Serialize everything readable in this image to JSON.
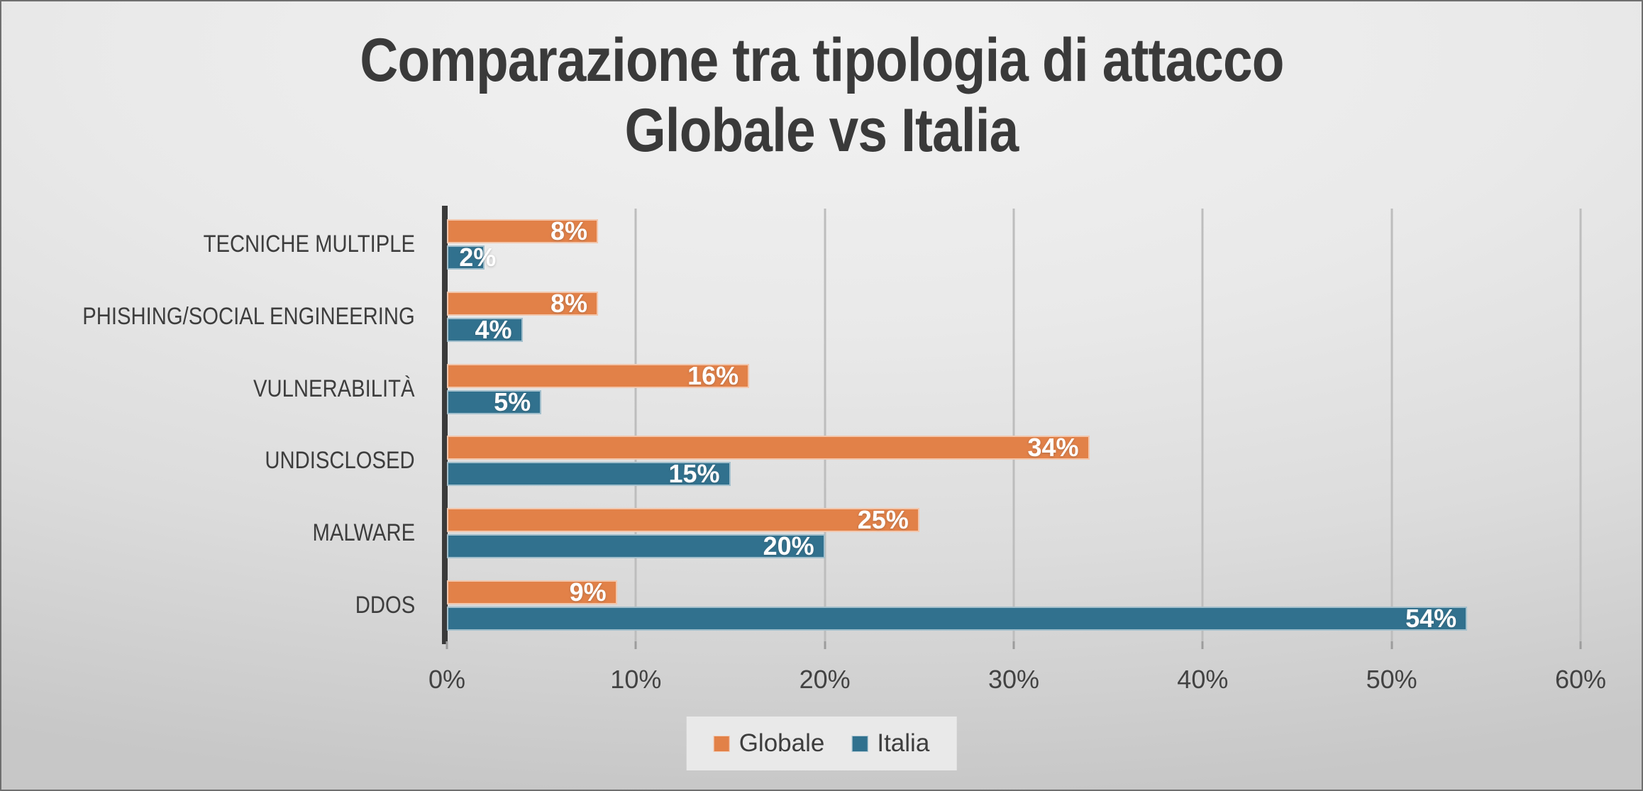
{
  "title": {
    "line1": "Comparazione tra tipologia di attacco",
    "line2": "Globale vs Italia"
  },
  "chart_data": {
    "type": "bar",
    "orientation": "horizontal",
    "title": "Comparazione tra tipologia di attacco Globale vs Italia",
    "categories": [
      "TECNICHE MULTIPLE",
      "PHISHING/SOCIAL ENGINEERING",
      "VULNERABILITÀ",
      "UNDISCLOSED",
      "MALWARE",
      "DDOS"
    ],
    "series": [
      {
        "name": "Globale",
        "color": "#E28148",
        "values": [
          8,
          8,
          16,
          34,
          25,
          9
        ]
      },
      {
        "name": "Italia",
        "color": "#31718E",
        "values": [
          2,
          4,
          5,
          15,
          20,
          54
        ]
      }
    ],
    "value_axis": {
      "min": 0,
      "max": 60,
      "tick_step": 10,
      "tick_labels": [
        "0%",
        "10%",
        "20%",
        "30%",
        "40%",
        "50%",
        "60%"
      ]
    },
    "data_labels": {
      "format": "{value}%",
      "position": "inside-end",
      "color": "#FFFFFF"
    },
    "legend": {
      "position": "bottom",
      "entries": [
        "Globale",
        "Italia"
      ]
    },
    "grid": true,
    "gridline_color": "#BDBDBD",
    "axis_line_color": "#3A3A3A",
    "background": {
      "top": "#F2F2F2",
      "bottom": "#C7C7C7"
    }
  }
}
